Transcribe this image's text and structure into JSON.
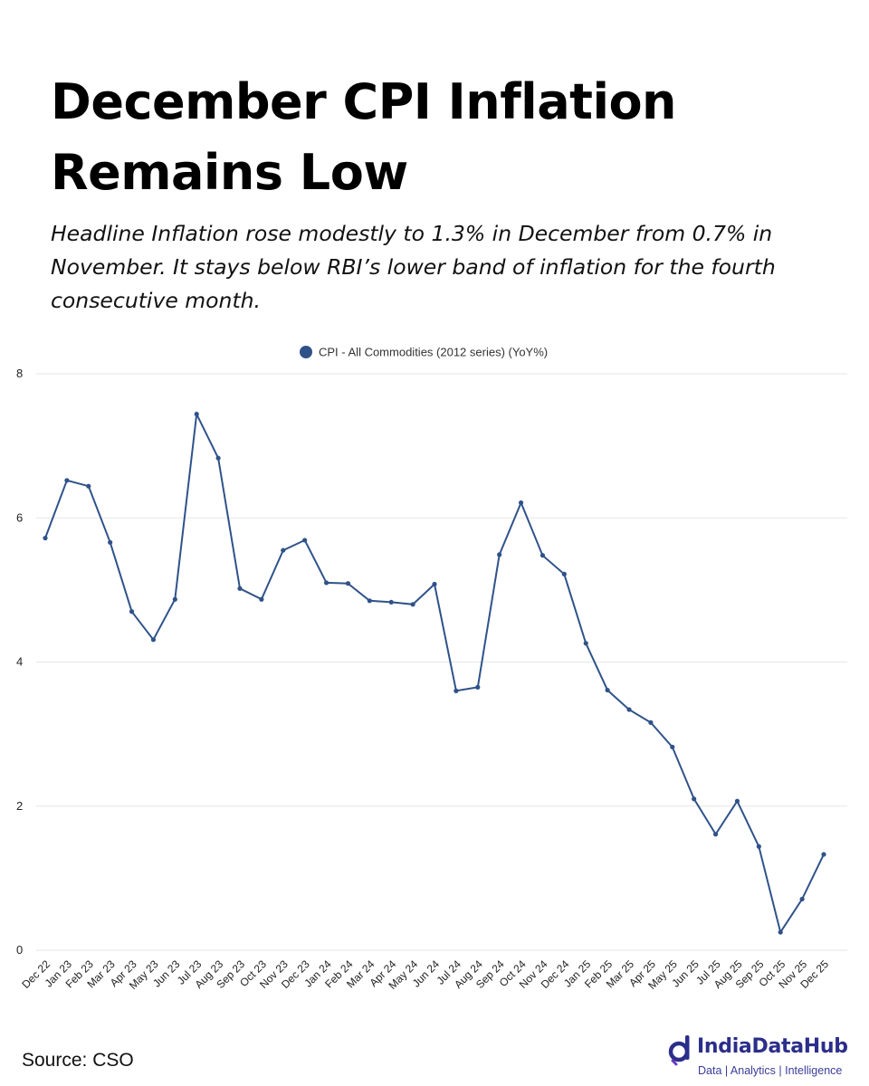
{
  "header": {
    "title": "December CPI Inflation Remains Low",
    "subtitle": "Headline Inflation rose modestly to 1.3% in December from 0.7% in November. It stays below RBI’s lower band of inflation for the fourth consecutive month."
  },
  "footer": {
    "source": "Source: CSO",
    "brand_name": "IndiaDataHub",
    "brand_tagline": "Data | Analytics | Intelligence"
  },
  "colors": {
    "series": "#2f5289",
    "grid": "#e6e6e6",
    "brand": "#2b2e8a"
  },
  "chart_data": {
    "type": "line",
    "legend_position": "top-center",
    "grid": true,
    "ylim": [
      0,
      8
    ],
    "yticks": [
      0,
      2,
      4,
      6,
      8
    ],
    "x": [
      "Dec 22",
      "Jan 23",
      "Feb 23",
      "Mar 23",
      "Apr 23",
      "May 23",
      "Jun 23",
      "Jul 23",
      "Aug 23",
      "Sep 23",
      "Oct 23",
      "Nov 23",
      "Dec 23",
      "Jan 24",
      "Feb 24",
      "Mar 24",
      "Apr 24",
      "May 24",
      "Jun 24",
      "Jul 24",
      "Aug 24",
      "Sep 24",
      "Oct 24",
      "Nov 24",
      "Dec 24",
      "Jan 25",
      "Feb 25",
      "Mar 25",
      "Apr 25",
      "May 25",
      "Jun 25",
      "Jul 25",
      "Aug 25",
      "Sep 25",
      "Oct 25",
      "Nov 25",
      "Dec 25"
    ],
    "series": [
      {
        "name": "CPI - All Commodities (2012 series) (YoY%)",
        "values": [
          5.72,
          6.52,
          6.44,
          5.66,
          4.7,
          4.31,
          4.87,
          7.44,
          6.83,
          5.02,
          4.87,
          5.55,
          5.69,
          5.1,
          5.09,
          4.85,
          4.83,
          4.8,
          5.08,
          3.6,
          3.65,
          5.49,
          6.21,
          5.48,
          5.22,
          4.26,
          3.61,
          3.34,
          3.16,
          2.82,
          2.1,
          1.61,
          2.07,
          1.44,
          0.25,
          0.71,
          1.33
        ]
      }
    ]
  }
}
